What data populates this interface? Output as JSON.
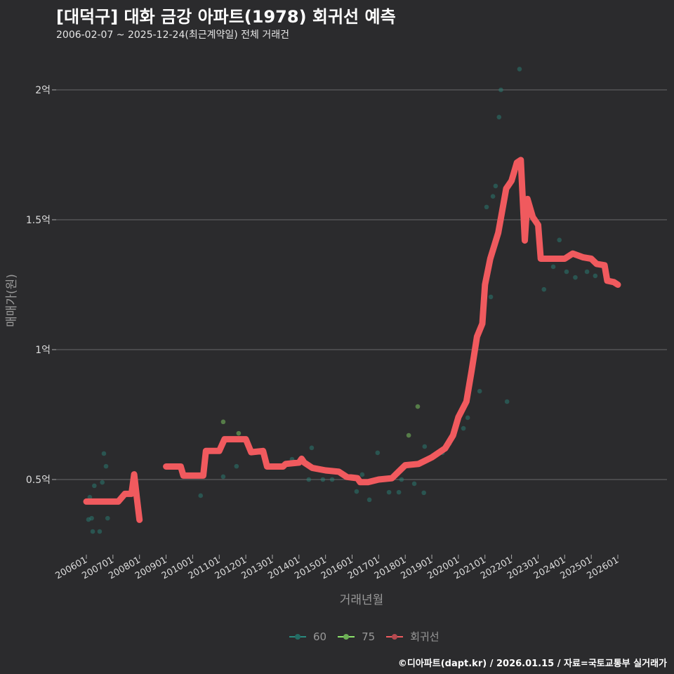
{
  "title": "[대덕구] 대화 금강 아파트(1978) 회귀선 예측",
  "subtitle": "2006-02-07 ~ 2025-12-24(최근계약일) 전체 거래건",
  "footer": "©디아파트(dapt.kr) / 2026.01.15 / 자료=국토교통부 실거래가",
  "colors": {
    "s60": "#2a8a7e",
    "s75": "#8be36a",
    "reg": "#f05a5e",
    "grid": "#6a6a6a",
    "bg": "#2b2b2d"
  },
  "chart_data": {
    "type": "scatter",
    "title": "[대덕구] 대화 금강 아파트(1978) 회귀선 예측",
    "xlabel": "거래년월",
    "ylabel": "매매가(원)",
    "xlim": [
      2006,
      2026
    ],
    "ylim": [
      2500,
      21500
    ],
    "y_ticks": [
      {
        "v": 5000,
        "label": "0.5억"
      },
      {
        "v": 10000,
        "label": "1억"
      },
      {
        "v": 15000,
        "label": "1.5억"
      },
      {
        "v": 20000,
        "label": "2억"
      }
    ],
    "x_ticks": [
      {
        "v": 2006,
        "label": "200601"
      },
      {
        "v": 2007,
        "label": "200701"
      },
      {
        "v": 2008,
        "label": "200801"
      },
      {
        "v": 2009,
        "label": "200901"
      },
      {
        "v": 2010,
        "label": "201001"
      },
      {
        "v": 2011,
        "label": "201101"
      },
      {
        "v": 2012,
        "label": "201201"
      },
      {
        "v": 2013,
        "label": "201301"
      },
      {
        "v": 2014,
        "label": "201401"
      },
      {
        "v": 2015,
        "label": "201501"
      },
      {
        "v": 2016,
        "label": "201601"
      },
      {
        "v": 2017,
        "label": "201701"
      },
      {
        "v": 2018,
        "label": "201801"
      },
      {
        "v": 2019,
        "label": "201901"
      },
      {
        "v": 2020,
        "label": "202001"
      },
      {
        "v": 2021,
        "label": "202101"
      },
      {
        "v": 2022,
        "label": "202201"
      },
      {
        "v": 2023,
        "label": "202301"
      },
      {
        "v": 2024,
        "label": "202401"
      },
      {
        "v": 2025,
        "label": "202501"
      },
      {
        "v": 2026,
        "label": "202601"
      }
    ],
    "legend": [
      {
        "name": "60",
        "color": "#2a8a7e"
      },
      {
        "name": "75",
        "color": "#8be36a"
      },
      {
        "name": "회귀선",
        "color": "#f05a5e"
      }
    ],
    "legend_position": "bottom",
    "series": [
      {
        "name": "60",
        "points": [
          [
            2006.13,
            4320
          ],
          [
            2006.08,
            3460
          ],
          [
            2006.2,
            3510
          ],
          [
            2006.24,
            3000
          ],
          [
            2006.3,
            4760
          ],
          [
            2006.5,
            3000
          ],
          [
            2006.6,
            4890
          ],
          [
            2006.66,
            6000
          ],
          [
            2006.74,
            5510
          ],
          [
            2006.8,
            3510
          ],
          [
            2010.3,
            4380
          ],
          [
            2011.15,
            5110
          ],
          [
            2011.65,
            5510
          ],
          [
            2013.74,
            5780
          ],
          [
            2014.37,
            5000
          ],
          [
            2014.48,
            6220
          ],
          [
            2014.9,
            5000
          ],
          [
            2015.25,
            5000
          ],
          [
            2016.17,
            4540
          ],
          [
            2016.38,
            5190
          ],
          [
            2016.65,
            4220
          ],
          [
            2016.96,
            6030
          ],
          [
            2017.39,
            4510
          ],
          [
            2017.76,
            4510
          ],
          [
            2017.86,
            5000
          ],
          [
            2018.34,
            4840
          ],
          [
            2018.7,
            4490
          ],
          [
            2018.73,
            6270
          ],
          [
            2019.4,
            6030
          ],
          [
            2019.66,
            6380
          ],
          [
            2020.19,
            6970
          ],
          [
            2020.35,
            7380
          ],
          [
            2020.58,
            9760
          ],
          [
            2020.8,
            8400
          ],
          [
            2021.06,
            15490
          ],
          [
            2021.22,
            12030
          ],
          [
            2021.3,
            15900
          ],
          [
            2021.4,
            16300
          ],
          [
            2021.53,
            18950
          ],
          [
            2021.6,
            20000
          ],
          [
            2021.83,
            8000
          ],
          [
            2022.3,
            20800
          ],
          [
            2023.22,
            12320
          ],
          [
            2023.57,
            13190
          ],
          [
            2023.8,
            14220
          ],
          [
            2024.07,
            13000
          ],
          [
            2024.4,
            12780
          ],
          [
            2024.84,
            13000
          ],
          [
            2025.15,
            12840
          ]
        ]
      },
      {
        "name": "75",
        "points": [
          [
            2011.15,
            7220
          ],
          [
            2011.73,
            6780
          ],
          [
            2018.13,
            6700
          ],
          [
            2018.47,
            7810
          ]
        ]
      },
      {
        "name": "회귀선",
        "segments": [
          [
            [
              2006,
              4150
            ],
            [
              2007.2,
              4150
            ],
            [
              2007.45,
              4450
            ],
            [
              2007.7,
              4450
            ],
            [
              2007.8,
              5200
            ],
            [
              2007.9,
              4300
            ],
            [
              2008.0,
              3450
            ]
          ],
          [
            [
              2009,
              5500
            ],
            [
              2009.55,
              5500
            ],
            [
              2009.65,
              5150
            ],
            [
              2010.4,
              5150
            ],
            [
              2010.5,
              6100
            ],
            [
              2011.0,
              6100
            ],
            [
              2011.2,
              6550
            ],
            [
              2012.0,
              6550
            ],
            [
              2012.2,
              6050
            ],
            [
              2012.65,
              6100
            ],
            [
              2012.8,
              5500
            ],
            [
              2013.4,
              5500
            ],
            [
              2013.5,
              5600
            ],
            [
              2014.0,
              5650
            ],
            [
              2014.1,
              5800
            ],
            [
              2014.2,
              5650
            ],
            [
              2014.5,
              5450
            ],
            [
              2015.0,
              5350
            ],
            [
              2015.5,
              5300
            ],
            [
              2015.8,
              5100
            ],
            [
              2016.2,
              5050
            ],
            [
              2016.3,
              4900
            ],
            [
              2016.6,
              4900
            ],
            [
              2017.0,
              5000
            ],
            [
              2017.5,
              5050
            ],
            [
              2017.8,
              5350
            ],
            [
              2018.0,
              5550
            ],
            [
              2018.5,
              5600
            ],
            [
              2019.0,
              5850
            ],
            [
              2019.5,
              6200
            ],
            [
              2019.8,
              6700
            ],
            [
              2020.0,
              7400
            ],
            [
              2020.3,
              8000
            ],
            [
              2020.5,
              9200
            ],
            [
              2020.7,
              10500
            ],
            [
              2020.9,
              11000
            ],
            [
              2021.0,
              12500
            ],
            [
              2021.2,
              13500
            ],
            [
              2021.5,
              14500
            ],
            [
              2021.8,
              16200
            ],
            [
              2022.0,
              16500
            ],
            [
              2022.2,
              17200
            ],
            [
              2022.35,
              17300
            ],
            [
              2022.5,
              14200
            ],
            [
              2022.6,
              15800
            ],
            [
              2022.8,
              15100
            ],
            [
              2023.0,
              14800
            ],
            [
              2023.1,
              13500
            ],
            [
              2024.0,
              13500
            ],
            [
              2024.3,
              13700
            ],
            [
              2024.7,
              13550
            ],
            [
              2025.0,
              13500
            ],
            [
              2025.2,
              13300
            ],
            [
              2025.5,
              13250
            ],
            [
              2025.6,
              12650
            ],
            [
              2025.85,
              12600
            ],
            [
              2026.0,
              12500
            ]
          ]
        ]
      }
    ]
  }
}
